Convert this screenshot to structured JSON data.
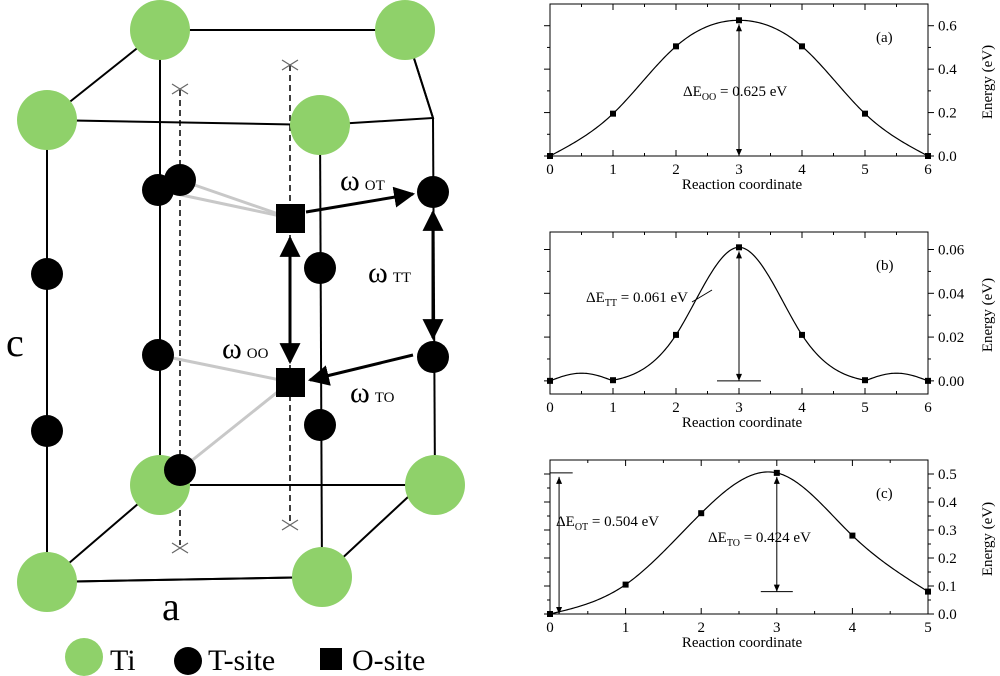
{
  "structure": {
    "axis_c": "c",
    "axis_a": "a",
    "omega": "ω",
    "rate_OT": "OT",
    "rate_OO": "OO",
    "rate_TT": "TT",
    "rate_TO": "TO",
    "colors": {
      "ti": "#8fd16a",
      "site": "#000000",
      "bond": "#c8c8c8"
    }
  },
  "legend": [
    {
      "label": "Ti",
      "marker": "circle",
      "color": "#8fd16a"
    },
    {
      "label": "T-site",
      "marker": "circle",
      "color": "#000000"
    },
    {
      "label": "O-site",
      "marker": "square",
      "color": "#000000"
    }
  ],
  "chart_data": [
    {
      "type": "line",
      "panel": "(a)",
      "x": [
        0,
        1,
        2,
        3,
        4,
        5,
        6
      ],
      "y": [
        0.0,
        0.195,
        0.505,
        0.625,
        0.505,
        0.195,
        0.0
      ],
      "xlim": [
        0,
        6
      ],
      "ylim": [
        0,
        0.7
      ],
      "xticks": [
        "0",
        "1",
        "2",
        "3",
        "4",
        "5",
        "6"
      ],
      "yticks": [
        "0.0",
        "0.2",
        "0.4",
        "0.6"
      ],
      "xlabel": "Reaction coordinate",
      "ylabel": "Energy (eV)",
      "annotation": {
        "delta": "ΔE",
        "sub": "OO",
        "value": " = 0.625 eV"
      }
    },
    {
      "type": "line",
      "panel": "(b)",
      "x": [
        0,
        1,
        2,
        3,
        4,
        5,
        6
      ],
      "y": [
        0.0,
        0.0003,
        0.021,
        0.061,
        0.021,
        0.0003,
        0.0
      ],
      "xlim": [
        0,
        6
      ],
      "ylim": [
        -0.006,
        0.068
      ],
      "xticks": [
        "0",
        "1",
        "2",
        "3",
        "4",
        "5",
        "6"
      ],
      "yticks": [
        "0.00",
        "0.02",
        "0.04",
        "0.06"
      ],
      "xlabel": "Reaction coordinate",
      "ylabel": "Energy (eV)",
      "annotation": {
        "delta": "ΔE",
        "sub": "TT",
        "value": " = 0.061 eV"
      }
    },
    {
      "type": "line",
      "panel": "(c)",
      "x": [
        0,
        1,
        2,
        3,
        4,
        5
      ],
      "y": [
        0.0,
        0.105,
        0.36,
        0.504,
        0.28,
        0.08
      ],
      "xlim": [
        0,
        5
      ],
      "ylim": [
        0,
        0.55
      ],
      "xticks": [
        "0",
        "1",
        "2",
        "3",
        "4",
        "5"
      ],
      "yticks": [
        "0.0",
        "0.1",
        "0.2",
        "0.3",
        "0.4",
        "0.5"
      ],
      "xlabel": "Reaction coordinate",
      "ylabel": "Energy (eV)",
      "annotation_ot": {
        "delta": "ΔE",
        "sub": "OT",
        "value": " = 0.504 eV"
      },
      "annotation_to": {
        "delta": "ΔE",
        "sub": "TO",
        "value": " = 0.424 eV"
      }
    }
  ]
}
